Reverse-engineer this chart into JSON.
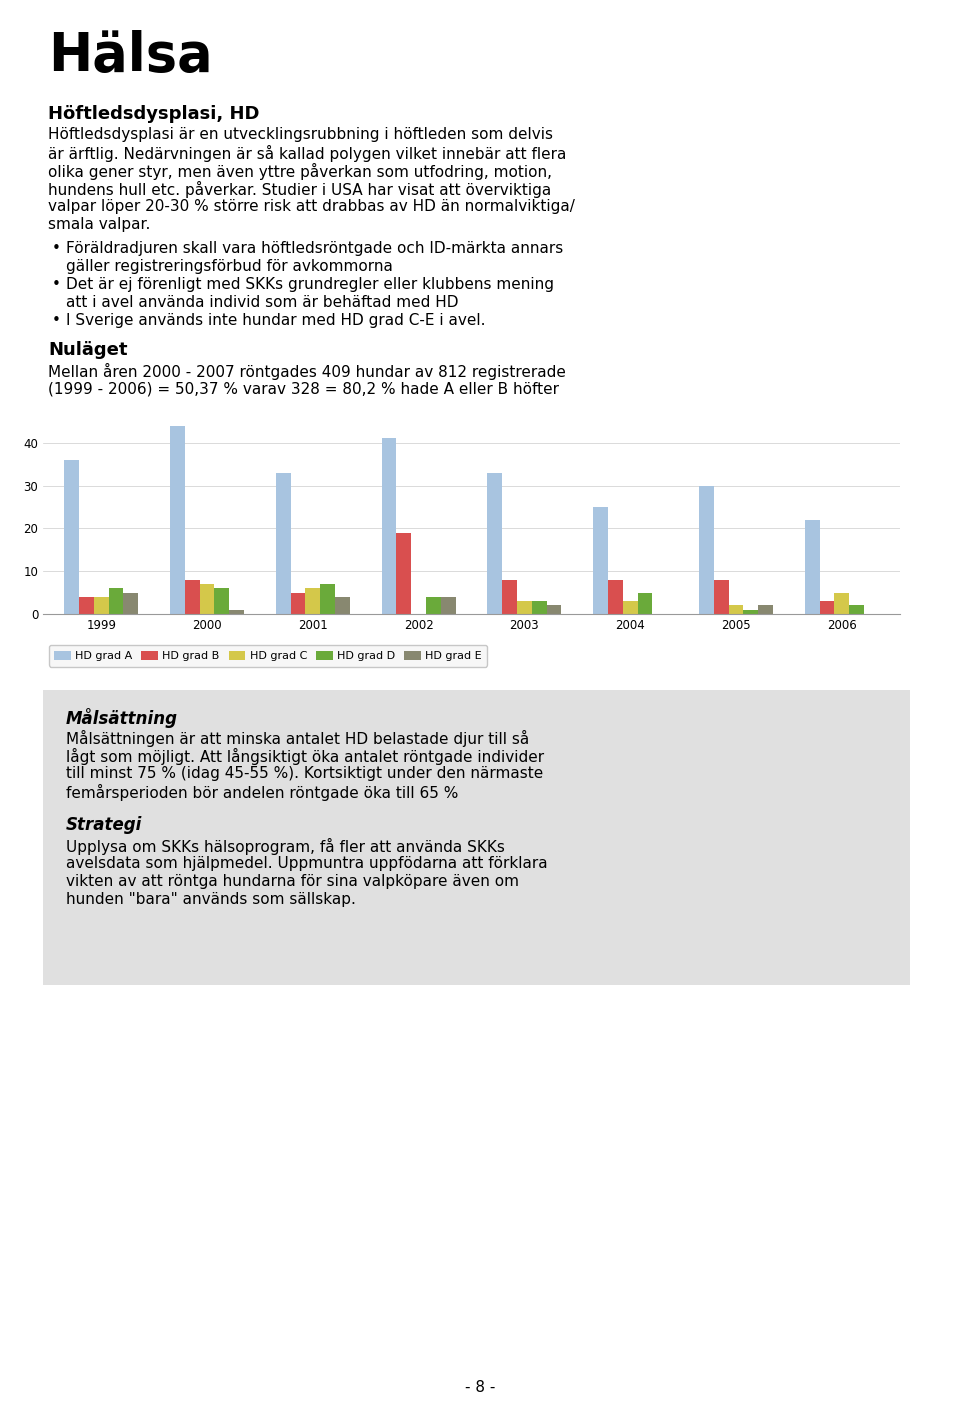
{
  "title_main": "Hälsa",
  "section_title": "Höftledsdysplasi, HD",
  "para1_lines": [
    "Höftledsdysplasi är en utvecklingsrubbning i höftleden som delvis",
    "är ärftlig. Nedärvningen är så kallad polygen vilket innebär att flera",
    "olika gener styr, men även yttre påverkan som utfodring, motion,",
    "hundens hull etc. påverkar. Studier i USA har visat att överviktiga",
    "valpar löper 20-30 % större risk att drabbas av HD än normalviktiga/",
    "smala valpar."
  ],
  "bullets": [
    "Föräldradjuren skall vara höftledsröntgade och ID-märkta annars",
    "  gäller registreringsförbud för avkommorna",
    "Det är ej förenligt med SKKs grundregler eller klubbens mening",
    "  att i avel använda individ som är behäftad med HD",
    "I Sverige används inte hundar med HD grad C-E i avel."
  ],
  "bullet_is_continuation": [
    false,
    true,
    false,
    true,
    false
  ],
  "nulagets_title": "Nuläget",
  "nulagets_lines": [
    "Mellan åren 2000 - 2007 röntgades 409 hundar av 812 registrerade",
    "(1999 - 2006) = 50,37 % varav 328 = 80,2 % hade A eller B höfter"
  ],
  "years": [
    "1999",
    "2000",
    "2001",
    "2002",
    "2003",
    "2004",
    "2005",
    "2006"
  ],
  "hd_a": [
    36,
    44,
    33,
    41,
    33,
    25,
    30,
    22
  ],
  "hd_b": [
    4,
    8,
    5,
    19,
    8,
    8,
    8,
    3
  ],
  "hd_c": [
    4,
    7,
    6,
    0,
    3,
    3,
    2,
    5
  ],
  "hd_d": [
    6,
    6,
    7,
    4,
    3,
    5,
    1,
    2
  ],
  "hd_e": [
    5,
    1,
    4,
    4,
    2,
    0,
    2,
    0
  ],
  "color_a": "#a8c4e0",
  "color_b": "#d94f4f",
  "color_c": "#d4c84a",
  "color_d": "#6aaa3a",
  "color_e": "#888870",
  "ylim": [
    0,
    46
  ],
  "yticks": [
    0,
    10,
    20,
    30,
    40
  ],
  "legend_labels": [
    "HD grad A",
    "HD grad B",
    "HD grad C",
    "HD grad D",
    "HD grad E"
  ],
  "box_title1": "Målsättning",
  "box_lines1": [
    "Målsättningen är att minska antalet HD belastade djur till så",
    "lågt som möjligt. Att långsiktigt öka antalet röntgade individer",
    "till minst 75 % (idag 45-55 %). Kortsiktigt under den närmaste",
    "femårsperioden bör andelen röntgade öka till 65 %"
  ],
  "box_title2": "Strategi",
  "box_lines2": [
    "Upplysa om SKKs hälsoprogram, få fler att använda SKKs",
    "avelsdata som hjälpmedel. Uppmuntra uppfödarna att förklara",
    "vikten av att röntga hundarna för sina valpköpare även om",
    "hunden \"bara\" används som sällskap."
  ],
  "page_number": "- 8 -",
  "background_color": "#ffffff",
  "box_background": "#e0e0e0"
}
